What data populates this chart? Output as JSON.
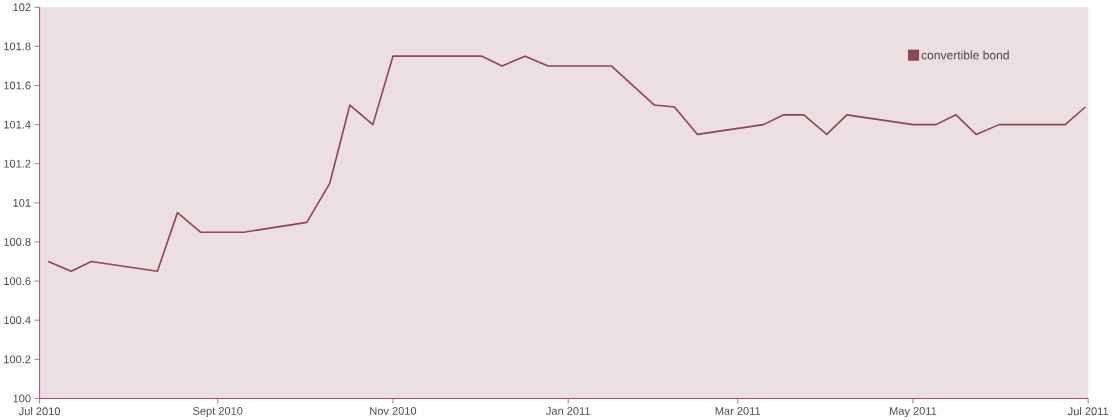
{
  "chart_data": {
    "type": "line",
    "x": [
      "2010-07-04",
      "2010-07-12",
      "2010-07-19",
      "2010-08-11",
      "2010-08-18",
      "2010-08-26",
      "2010-09-02",
      "2010-09-10",
      "2010-10-02",
      "2010-10-10",
      "2010-10-17",
      "2010-10-25",
      "2010-11-01",
      "2010-11-24",
      "2010-12-02",
      "2010-12-09",
      "2010-12-17",
      "2010-12-25",
      "2011-01-16",
      "2011-01-31",
      "2011-02-07",
      "2011-02-15",
      "2011-03-10",
      "2011-03-17",
      "2011-03-24",
      "2011-04-01",
      "2011-04-08",
      "2011-05-01",
      "2011-05-09",
      "2011-05-16",
      "2011-05-23",
      "2011-05-31",
      "2011-06-23",
      "2011-06-30"
    ],
    "series": [
      {
        "name": "convertible bond",
        "color": "#8e4558",
        "values": [
          100.7,
          100.65,
          100.7,
          100.65,
          100.95,
          100.85,
          100.85,
          100.85,
          100.9,
          101.1,
          101.5,
          101.4,
          101.75,
          101.75,
          101.75,
          101.7,
          101.75,
          101.7,
          101.7,
          101.5,
          101.49,
          101.35,
          101.4,
          101.45,
          101.45,
          101.35,
          101.45,
          101.4,
          101.4,
          101.45,
          101.35,
          101.4,
          101.4,
          101.49
        ]
      }
    ],
    "xlim": [
      "2010-07-01",
      "2011-07-01"
    ],
    "xticks": [
      {
        "value": "2010-07-01",
        "label": "Jul 2010"
      },
      {
        "value": "2010-09-01",
        "label": "Sept 2010"
      },
      {
        "value": "2010-11-01",
        "label": "Nov 2010"
      },
      {
        "value": "2011-01-01",
        "label": "Jan 2011"
      },
      {
        "value": "2011-03-01",
        "label": "Mar 2011"
      },
      {
        "value": "2011-05-01",
        "label": "May 2011"
      },
      {
        "value": "2011-07-01",
        "label": "Jul 2011"
      }
    ],
    "ylim": [
      100,
      102
    ],
    "yticks": [
      100,
      100.2,
      100.4,
      100.6,
      100.8,
      101,
      101.2,
      101.4,
      101.6,
      101.8,
      102
    ],
    "legend": "top right",
    "marker": "none",
    "line_style": "solid"
  }
}
